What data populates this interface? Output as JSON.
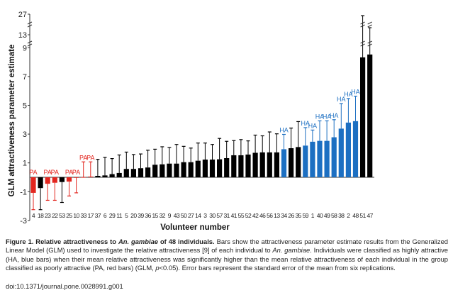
{
  "chart_data": {
    "type": "bar",
    "xlabel": "Volunteer number",
    "ylabel": "GLM attractiveness parameter estimate",
    "yticks": [
      27,
      13,
      9,
      7,
      5,
      3,
      1,
      -1,
      -3
    ],
    "ylim": [
      -3,
      27
    ],
    "axis_breaks": [
      [
        9,
        13
      ],
      [
        13,
        27
      ]
    ],
    "grid": false,
    "colors": {
      "PA": "#e3261f",
      "HA": "#1c6fc2",
      "none": "#000000"
    },
    "categories": [
      "4",
      "18",
      "23",
      "22",
      "53",
      "25",
      "10",
      "33",
      "17",
      "37",
      "6",
      "29",
      "11",
      "5",
      "20",
      "39",
      "36",
      "15",
      "32",
      "9",
      "43",
      "50",
      "27",
      "14",
      "3",
      "30",
      "57",
      "31",
      "41",
      "55",
      "52",
      "42",
      "46",
      "56",
      "13",
      "34",
      "26",
      "35",
      "59",
      "1",
      "40",
      "49",
      "58",
      "38",
      "2",
      "48",
      "51",
      "47"
    ],
    "values": [
      -1.08,
      -0.75,
      -0.45,
      -0.38,
      -0.33,
      -0.3,
      -0.02,
      0.01,
      0.05,
      0.1,
      0.13,
      0.22,
      0.3,
      0.58,
      0.58,
      0.63,
      0.68,
      0.87,
      0.9,
      0.95,
      0.95,
      1.05,
      1.05,
      1.15,
      1.23,
      1.23,
      1.25,
      1.33,
      1.53,
      1.53,
      1.58,
      1.7,
      1.73,
      1.73,
      1.73,
      1.95,
      2.02,
      2.1,
      2.2,
      2.47,
      2.53,
      2.53,
      2.78,
      3.38,
      3.8,
      3.9,
      8.33,
      8.53
    ],
    "errors": [
      1.17,
      1.5,
      1.15,
      1.22,
      1.42,
      1.0,
      1.06,
      1.06,
      1.02,
      1.15,
      1.25,
      1.08,
      1.25,
      1.17,
      1.0,
      0.99,
      1.2,
      1.08,
      1.22,
      1.12,
      1.33,
      1.1,
      0.98,
      1.23,
      1.15,
      1.05,
      1.45,
      1.17,
      1.02,
      1.09,
      0.95,
      1.23,
      1.15,
      1.42,
      1.29,
      1.03,
      1.4,
      1.77,
      1.25,
      0.81,
      1.39,
      1.39,
      1.22,
      1.74,
      1.67,
      1.73,
      17.67,
      9.27
    ],
    "groups": [
      "PA",
      "none",
      "PA",
      "PA",
      "none",
      "PA",
      "PA",
      "PA",
      "PA",
      "none",
      "none",
      "none",
      "none",
      "none",
      "none",
      "none",
      "none",
      "none",
      "none",
      "none",
      "none",
      "none",
      "none",
      "none",
      "none",
      "none",
      "none",
      "none",
      "none",
      "none",
      "none",
      "none",
      "none",
      "none",
      "none",
      "HA",
      "none",
      "none",
      "HA",
      "HA",
      "HA",
      "HA",
      "HA",
      "HA",
      "HA",
      "HA",
      "none",
      "none"
    ],
    "annotation_labels": {
      "PA": "PA",
      "HA": "HA"
    }
  },
  "caption": {
    "title": "Figure 1. Relative attractiveness to ",
    "title_species": "An. gambiae",
    "title_end": " of 48 individuals.",
    "text1": " Bars show the attractiveness parameter estimate results from the Generalized Linear Model (GLM) used to investigate the relative attractiveness [9] of each individual to ",
    "species": "An. gambiae",
    "text2": ". Individuals were classified as highly attractive (HA, blue bars) when their mean relative attractiveness was significantly higher than the mean relative attractiveness of each individual in the group classified as poorly attractive (PA, red bars) (GLM, ",
    "p": "p",
    "text3": "<0.05). Error bars represent the standard error of the mean from six replications.",
    "doi": "doi:10.1371/journal.pone.0028991.g001"
  }
}
